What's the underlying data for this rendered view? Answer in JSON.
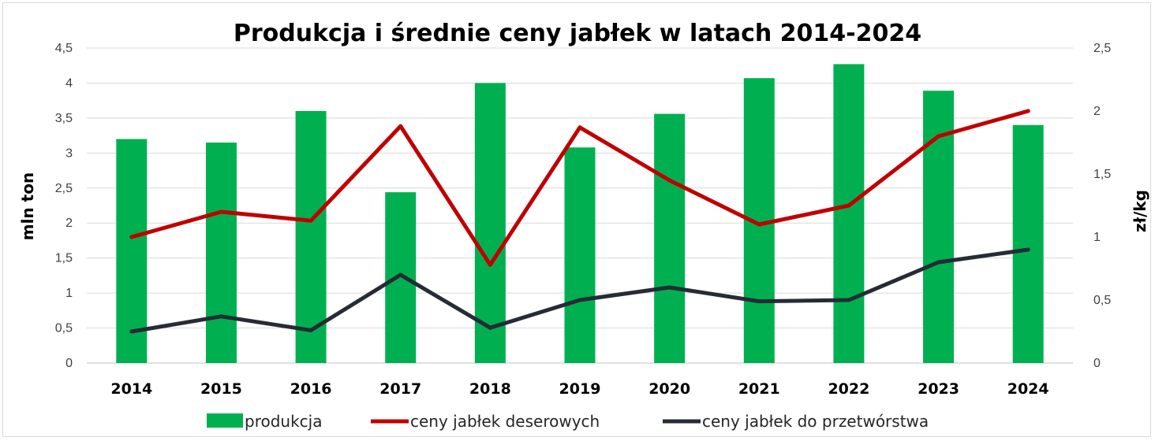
{
  "chart_data": {
    "type": "bar",
    "title": "Produkcja i średnie ceny jabłek w latach 2014-2024",
    "categories": [
      "2014",
      "2015",
      "2016",
      "2017",
      "2018",
      "2019",
      "2020",
      "2021",
      "2022",
      "2023",
      "2024"
    ],
    "y_left": {
      "label": "mln ton",
      "ylim": [
        0,
        4.5
      ],
      "ticks": [
        "0",
        "0,5",
        "1",
        "1,5",
        "2",
        "2,5",
        "3",
        "3,5",
        "4",
        "4,5"
      ]
    },
    "y_right": {
      "label": "zł/kg",
      "ylim": [
        0,
        2.5
      ],
      "ticks": [
        "0",
        "0,5",
        "1",
        "1,5",
        "2",
        "2,5"
      ]
    },
    "series": [
      {
        "name": "produkcja",
        "type": "bar",
        "axis": "left",
        "color": "#00b050",
        "values": [
          3.2,
          3.15,
          3.6,
          2.44,
          4.0,
          3.08,
          3.56,
          4.07,
          4.27,
          3.89,
          3.4
        ]
      },
      {
        "name": "ceny jabłek deserowych",
        "type": "line",
        "axis": "right",
        "color": "#c00000",
        "values": [
          1.0,
          1.2,
          1.13,
          1.88,
          0.78,
          1.87,
          1.45,
          1.1,
          1.25,
          1.8,
          2.0
        ]
      },
      {
        "name": "ceny  jabłek do przetwórstwa",
        "type": "line",
        "axis": "right",
        "color": "#262b36",
        "values": [
          0.25,
          0.37,
          0.26,
          0.7,
          0.28,
          0.5,
          0.6,
          0.49,
          0.5,
          0.8,
          0.9
        ]
      }
    ],
    "grid": true,
    "legend_position": "bottom"
  }
}
